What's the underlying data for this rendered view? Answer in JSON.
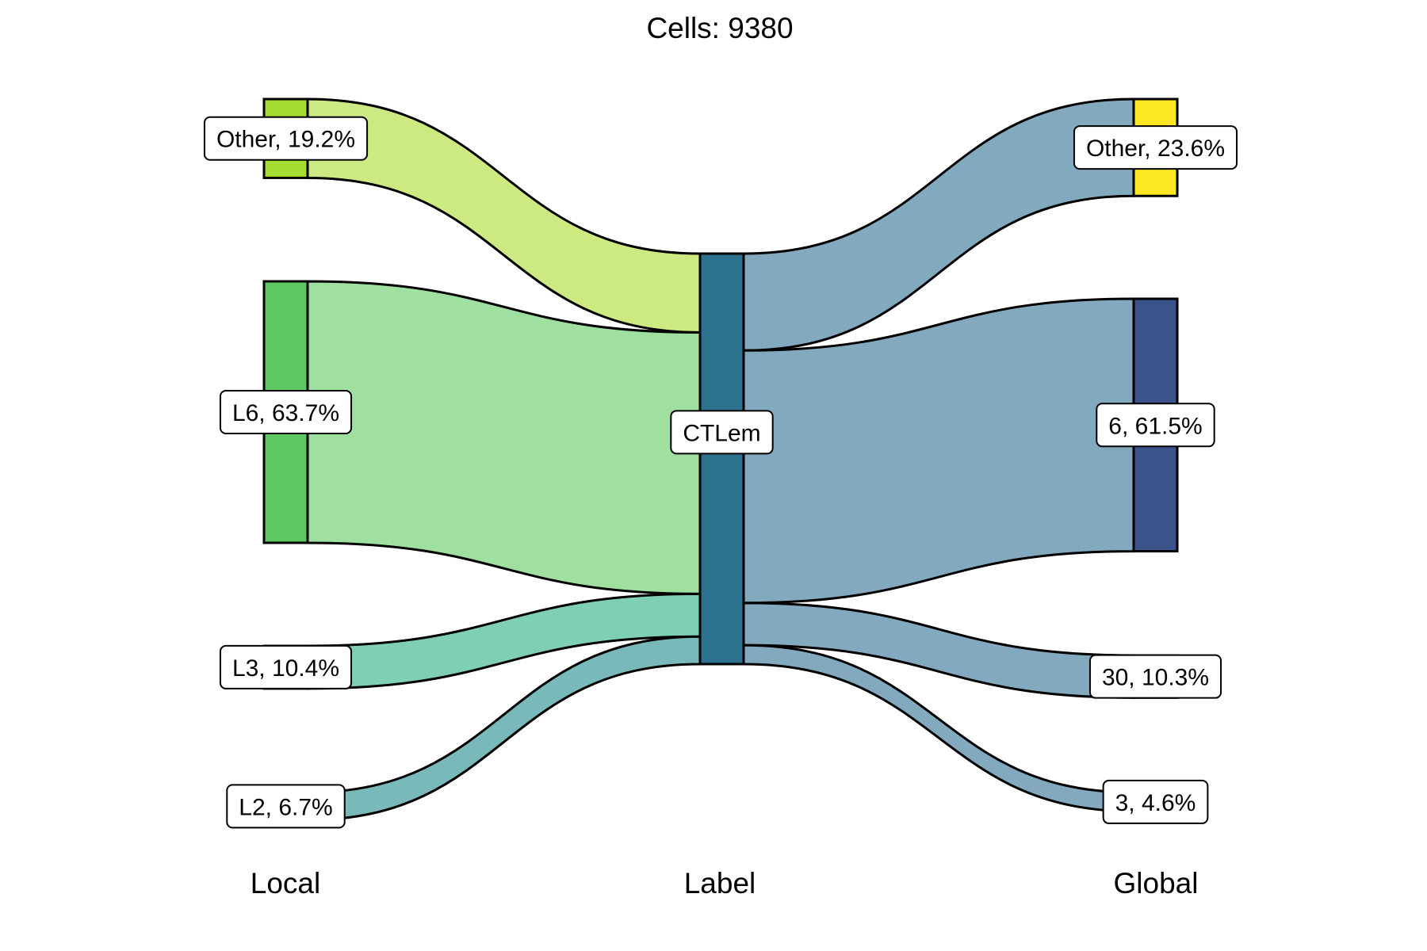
{
  "title": "Cells:  9380",
  "axes": [
    "Local",
    "Label",
    "Global"
  ],
  "nodes": {
    "local": [
      {
        "name": "Other",
        "label": "Other, 19.2%",
        "pct": 19.2,
        "color": "#a6dd35"
      },
      {
        "name": "L6",
        "label": "L6, 63.7%",
        "pct": 63.7,
        "color": "#5ec962"
      },
      {
        "name": "L3",
        "label": "L3, 10.4%",
        "pct": 10.4,
        "color": "#7dcfb6"
      },
      {
        "name": "L2",
        "label": "L2, 6.7%",
        "pct": 6.7,
        "color": "#7ab9b9"
      }
    ],
    "label": [
      {
        "name": "CTLem",
        "label": "CTLem",
        "pct": 100,
        "color": "#2c728e"
      }
    ],
    "global": [
      {
        "name": "Other",
        "label": "Other, 23.6%",
        "pct": 23.6,
        "color": "#fde725"
      },
      {
        "name": "6",
        "label": "6, 61.5%",
        "pct": 61.5,
        "color": "#3b528b"
      },
      {
        "name": "30",
        "label": "30, 10.3%",
        "pct": 10.3,
        "color": "#82a9bd"
      },
      {
        "name": "3",
        "label": "3, 4.6%",
        "pct": 4.6,
        "color": "#82a9bd"
      }
    ]
  },
  "flows": {
    "local_to_label": [
      {
        "from": "Other",
        "pct": 19.2,
        "color": "#cce982"
      },
      {
        "from": "L6",
        "pct": 63.7,
        "color": "#9fdf9f"
      },
      {
        "from": "L3",
        "pct": 10.4,
        "color": "#7ecfb5"
      },
      {
        "from": "L2",
        "pct": 6.7,
        "color": "#7ab9b9"
      }
    ],
    "label_to_global": [
      {
        "to": "Other",
        "pct": 23.6,
        "color": "#82a9bd"
      },
      {
        "to": "6",
        "pct": 61.5,
        "color": "#82a9bd"
      },
      {
        "to": "30",
        "pct": 10.3,
        "color": "#82a9bd"
      },
      {
        "to": "3",
        "pct": 4.6,
        "color": "#82a9bd"
      }
    ]
  }
}
